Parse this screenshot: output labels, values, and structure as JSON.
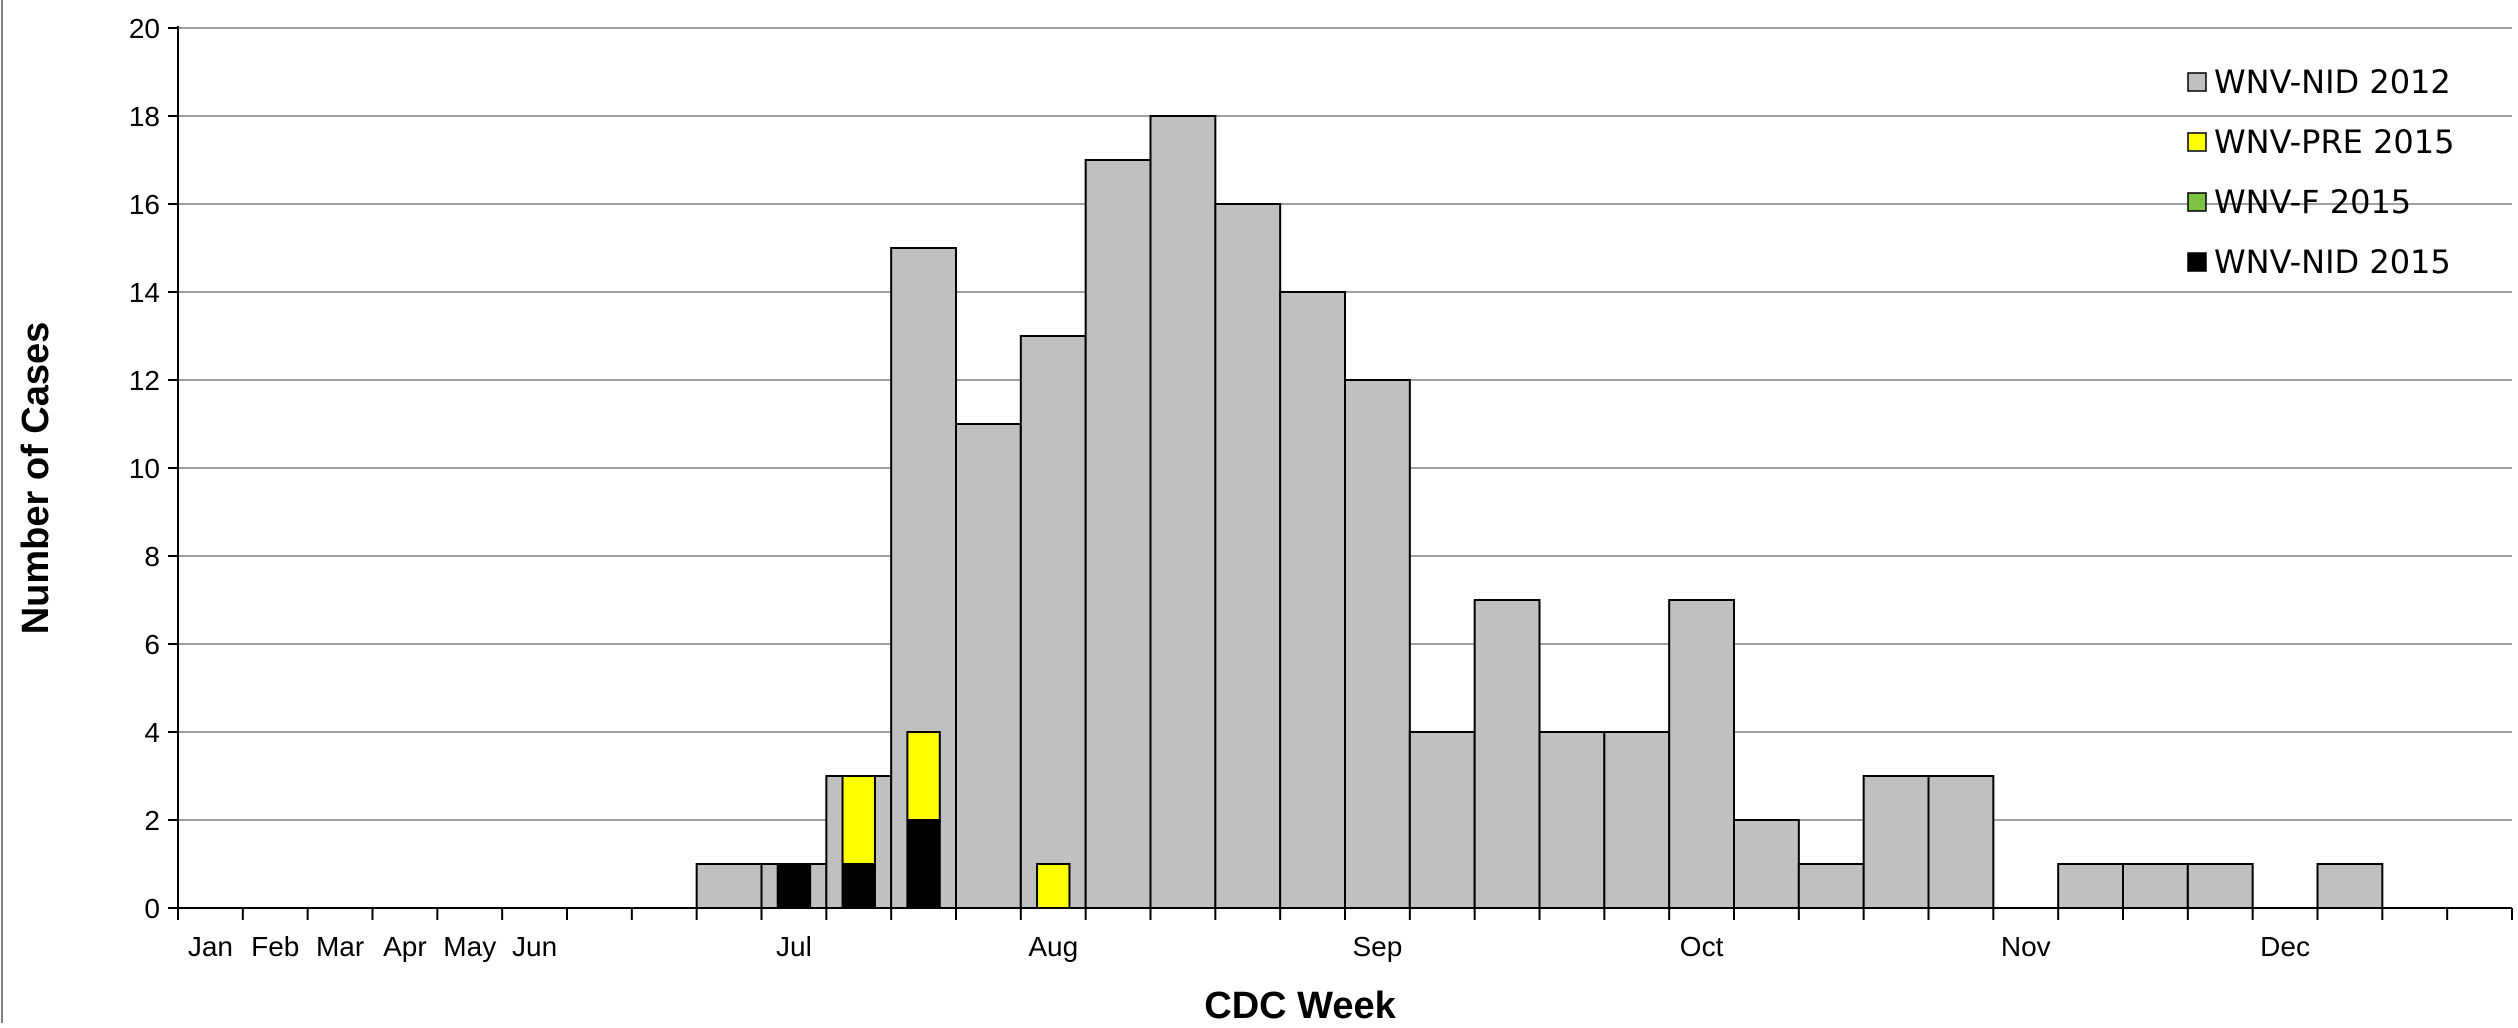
{
  "chart_data": {
    "type": "bar",
    "stacked": true,
    "title": "",
    "xlabel": "CDC Week",
    "ylabel": "Number of  Cases",
    "ylim": [
      0,
      20
    ],
    "y_ticks": [
      0,
      2,
      4,
      6,
      8,
      10,
      12,
      14,
      16,
      18,
      20
    ],
    "grid": true,
    "legend_position": "top-right",
    "colors": {
      "WNV-NID 2012": "#c0c0c0",
      "WNV-PRE 2015": "#ffff00",
      "WNV-F 2015": "#7dc242",
      "WNV-NID 2015": "#000000"
    },
    "legend": [
      "WNV-NID 2012",
      "WNV-PRE 2015",
      "WNV-F 2015",
      "WNV-NID 2015"
    ],
    "month_labels": [
      {
        "label": "Jan",
        "week": 1
      },
      {
        "label": "Feb",
        "week": 2
      },
      {
        "label": "Mar",
        "week": 3
      },
      {
        "label": "Apr",
        "week": 4
      },
      {
        "label": "May",
        "week": 5
      },
      {
        "label": "Jun",
        "week": 6
      },
      {
        "label": "Jul",
        "week": 10
      },
      {
        "label": "Aug",
        "week": 14
      },
      {
        "label": "Sep",
        "week": 19
      },
      {
        "label": "Oct",
        "week": 24
      },
      {
        "label": "Nov",
        "week": 29
      },
      {
        "label": "Dec",
        "week": 33
      }
    ],
    "week_count": 36,
    "series_2012": {
      "name": "WNV-NID 2012",
      "weeks": [
        9,
        10,
        11,
        12,
        13,
        14,
        15,
        16,
        17,
        18,
        19,
        20,
        21,
        22,
        23,
        24,
        25,
        26,
        27,
        28,
        30,
        31,
        32,
        34
      ],
      "values": [
        1,
        1,
        3,
        15,
        11,
        13,
        17,
        18,
        16,
        14,
        12,
        4,
        7,
        4,
        4,
        7,
        2,
        1,
        3,
        3,
        1,
        1,
        1,
        1
      ]
    },
    "series_2015": [
      {
        "name": "WNV-NID 2015",
        "weeks": [
          10,
          11,
          12,
          14
        ],
        "values": [
          1,
          1,
          2,
          0
        ]
      },
      {
        "name": "WNV-F 2015",
        "weeks": [
          10,
          11,
          12,
          14
        ],
        "values": [
          0,
          0,
          0,
          0
        ]
      },
      {
        "name": "WNV-PRE 2015",
        "weeks": [
          10,
          11,
          12,
          14
        ],
        "values": [
          0,
          2,
          2,
          1
        ]
      }
    ]
  }
}
